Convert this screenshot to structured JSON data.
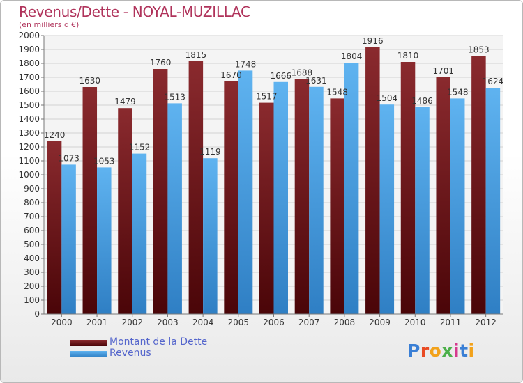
{
  "title": "Revenus/Dette - NOYAL-MUZILLAC",
  "subtitle": "(en milliers d'€)",
  "colors": {
    "dette": "#6b1014",
    "revenus": "#4aa3e6",
    "title": "#b0335b",
    "legend_text": "#5566cc"
  },
  "legend": [
    {
      "label": "Montant de la Dette",
      "color": "#6b1014"
    },
    {
      "label": "Revenus",
      "color": "#4aa3e6"
    }
  ],
  "logo": {
    "text": "Proxiti",
    "letter_colors": [
      "#3a7fd5",
      "#e94b24",
      "#f2a21b",
      "#4cb04a",
      "#d63a8e",
      "#3a7fd5",
      "#f2a21b"
    ]
  },
  "chart_data": {
    "type": "bar",
    "title": "Revenus/Dette - NOYAL-MUZILLAC",
    "subtitle": "(en milliers d'€)",
    "categories": [
      "2000",
      "2001",
      "2002",
      "2003",
      "2004",
      "2005",
      "2006",
      "2007",
      "2008",
      "2009",
      "2010",
      "2011",
      "2012"
    ],
    "series": [
      {
        "name": "Montant de la Dette",
        "color": "#6b1014",
        "values": [
          1240,
          1630,
          1479,
          1760,
          1815,
          1670,
          1517,
          1688,
          1548,
          1916,
          1810,
          1701,
          1853
        ]
      },
      {
        "name": "Revenus",
        "color": "#4aa3e6",
        "values": [
          1073,
          1053,
          1152,
          1513,
          1119,
          1748,
          1666,
          1631,
          1804,
          1504,
          1486,
          1548,
          1624
        ]
      }
    ],
    "ylim": [
      0,
      2000
    ],
    "yticks": [
      0,
      100,
      200,
      300,
      400,
      500,
      600,
      700,
      800,
      900,
      1000,
      1100,
      1200,
      1300,
      1400,
      1500,
      1600,
      1700,
      1800,
      1900,
      2000
    ],
    "grid": true,
    "legend_position": "bottom-left",
    "xlabel": "",
    "ylabel": ""
  }
}
